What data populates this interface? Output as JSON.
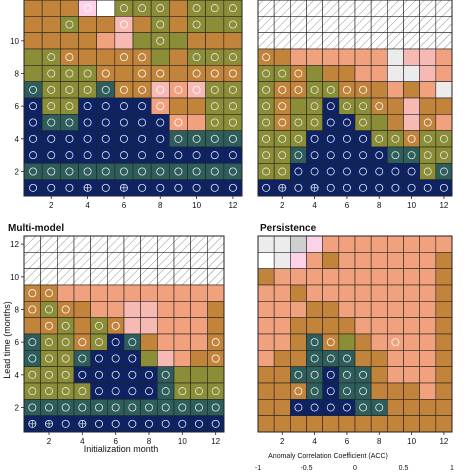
{
  "palette": {
    "1": "#0d2366",
    "2": "#2e5e5c",
    "3": "#8b8e37",
    "4": "#c2843b",
    "5": "#f2a17e",
    "6": "#f6b9b4",
    "7": "#fcd2e8",
    "8": "#ececec",
    "9": "#cfcfcf",
    "0": "#ffffff",
    "h": "hatch",
    "marker_circle": "#e8e8e8",
    "grid": "#222222"
  },
  "colorbar": {
    "title": "Anomaly Correlation Coefficient (ACC)",
    "ticks": [
      "-1",
      "-0.5",
      "0",
      "0.5",
      "1"
    ],
    "colors": [
      "#0d2366",
      "#2e5e5c",
      "#8b8e37",
      "#c2843b",
      "#f2a17e",
      "#f6b9b4",
      "#fcd2e8",
      "#ffffff"
    ]
  },
  "axes_text": {
    "ylabel": "Lead time (months)",
    "xlabel": "Initialization month"
  },
  "chart_data": [
    {
      "type": "heatmap",
      "title": "",
      "x": [
        1,
        2,
        3,
        4,
        5,
        6,
        7,
        8,
        9,
        10,
        11,
        12
      ],
      "y": [
        1,
        2,
        3,
        4,
        5,
        6,
        7,
        8,
        9,
        10,
        11,
        12
      ],
      "xticks": [
        "2",
        "4",
        "6",
        "8",
        "10",
        "12"
      ],
      "yticks": [
        "2",
        "4",
        "6",
        "8",
        "10"
      ],
      "rows_top_to_bottom": [
        "H4H4H4H7H0H3H3H3H4H3H3H3",
        "H4H4H3H4H4H6H4H3H4H3H3H3",
        "H4H4H4H4H5H6H3H3H3H4H4H4",
        "H3H3H4H4H4H4H4H3H4H3H3H3",
        "H3H3H3H3H4H4H4H4H4H4H4H4",
        "H2H3H3H3H2H4H4H6H5H6H3H3",
        "H1H3H3H1H1H1H1H5H4H4H3H3",
        "H1H2H2H1H1H1H1H1H5H5H3H3",
        "H1H1H1H1H1H1H1H1H2H2H2H2",
        "H1H1H1H1H1H1H1H1H1H1H1H1",
        "H2H2H2H2H2H2H2H2H2H2H2H2",
        "H1H1H1H1H1H1H1H1H1H1H1H1"
      ],
      "sig_top_to_bottom": [
        "000111110111",
        "001001010101",
        "000000010000",
        "011001100111",
        "011110110111",
        "111111111111",
        "111111110011",
        "111111111011",
        "111111111111",
        "111111111111",
        "111111111111",
        "111212111111"
      ]
    },
    {
      "type": "heatmap",
      "title": "",
      "x": [
        1,
        2,
        3,
        4,
        5,
        6,
        7,
        8,
        9,
        10,
        11,
        12
      ],
      "y": [
        1,
        2,
        3,
        4,
        5,
        6,
        7,
        8,
        9,
        10,
        11,
        12
      ],
      "xticks": [
        "2",
        "4",
        "6",
        "8",
        "10",
        "12"
      ],
      "yticks": [],
      "rows_top_to_bottom": [
        "hhhhhhhhhhhh",
        "hhhhhhhhhhhh",
        "hhhhhhhhhhhh",
        "H4H4H5H5H5H5H5H5H8H6H6H5",
        "H3H3H4H3H4H4H5H5H8H8H6H5",
        "H3H4H4H3H3H4H4H4H5H4H5H8",
        "H3H4H3H3H1H3H3H4H4H6H4H4",
        "H3H4H3H3H1H1H3H3H4H6H4H5",
        "H3H3H3H1H1H1H1H3H3H4H3H3",
        "H3H3H2H1H1H1H1H1H2H2H3H3",
        "H3H3H1H1H1H1H1H1H1H1H3H2",
        "H1H1H1H1H1H1H1H1H1H1H1H1"
      ],
      "sig_top_to_bottom": [
        "000000000000",
        "000000000000",
        "000000000000",
        "100000000000",
        "111000000000",
        "111111100000",
        "110111110000",
        "111111100010",
        "111111111111",
        "111111111111",
        "111111111111",
        "121211111111"
      ]
    },
    {
      "type": "heatmap",
      "title": "Multi-model",
      "x": [
        1,
        2,
        3,
        4,
        5,
        6,
        7,
        8,
        9,
        10,
        11,
        12
      ],
      "y": [
        1,
        2,
        3,
        4,
        5,
        6,
        7,
        8,
        9,
        10,
        11,
        12
      ],
      "xticks": [
        "2",
        "4",
        "6",
        "8",
        "10",
        "12"
      ],
      "yticks": [
        "2",
        "4",
        "6",
        "8",
        "10",
        "12"
      ],
      "xlabel": "Initialization month",
      "rows_top_to_bottom": [
        "hhhhhhhhhhhh",
        "hhhhhhhhhhhh",
        "hhhhhhhhhhhh",
        "H4H4H5H5H5H5H5H5H5H5H5H5",
        "H4H3H4H4H5H5H6H6H5H5H5H4",
        "H4H4H3H4H3H4H6H6H5H5H5H4",
        "H2H3H3H4H3H1H2H4H5H5H5H4",
        "H2H3H3H2H1H1H1H3H6H5H4H4",
        "H3H3H3H1H1H1H1H1H2H3H3H3",
        "H3H3H3H3H1H1H1H1H2H3H3H3",
        "H2H2H2H2H2H2H2H2H2H2H2H2",
        "H1H1H1H1H1H1H1H1H1H1H1H1"
      ],
      "sig_top_to_bottom": [
        "000000000000",
        "000000000000",
        "000000000000",
        "110000000000",
        "111000000000",
        "011011000000",
        "111111100001",
        "111111100001",
        "111111111000",
        "111111111111",
        "111111111111",
        "221211111111"
      ]
    },
    {
      "type": "heatmap",
      "title": "Persistence",
      "x": [
        1,
        2,
        3,
        4,
        5,
        6,
        7,
        8,
        9,
        10,
        11,
        12
      ],
      "y": [
        1,
        2,
        3,
        4,
        5,
        6,
        7,
        8,
        9,
        10,
        11,
        12
      ],
      "xticks": [
        "2",
        "4",
        "6",
        "8",
        "10",
        "12"
      ],
      "yticks": [],
      "rows_top_to_bottom": [
        "H8H8H9H7H5H5H5H5H5H5H5H5",
        "H0H8H7H5H4H5H5H5H5H5H5H4",
        "H4H5H5H5H5H5H5H5H5H5H5H4",
        "H5H5H4H5H5H5H5H5H5H5H5H4",
        "H5H5H5H4H4H5H5H5H5H5H5H4",
        "H5H5H4H4H4H4H5H5H5H5H5H4",
        "H5H5H4H2H4H3H4H5H5H5H5H4",
        "H5H4H4H2H2H2H4H4H5H5H5H4",
        "H4H4H2H2H1H2H2H4H5H5H5H4",
        "H4H4H4H2H1H2H2H4H4H4H5H4",
        "H4H4H1H1H1H1H2H2H4H4H4H4",
        "H4H4H4H4H4H4H4H4H4H4H4H4"
      ],
      "sig_top_to_bottom": [
        "000000000000",
        "000000000000",
        "000000000000",
        "000000000000",
        "000000000000",
        "000000000000",
        "000110001000",
        "000111000000",
        "001111100000",
        "001111100000",
        "001111110000",
        "000000000000"
      ]
    }
  ]
}
